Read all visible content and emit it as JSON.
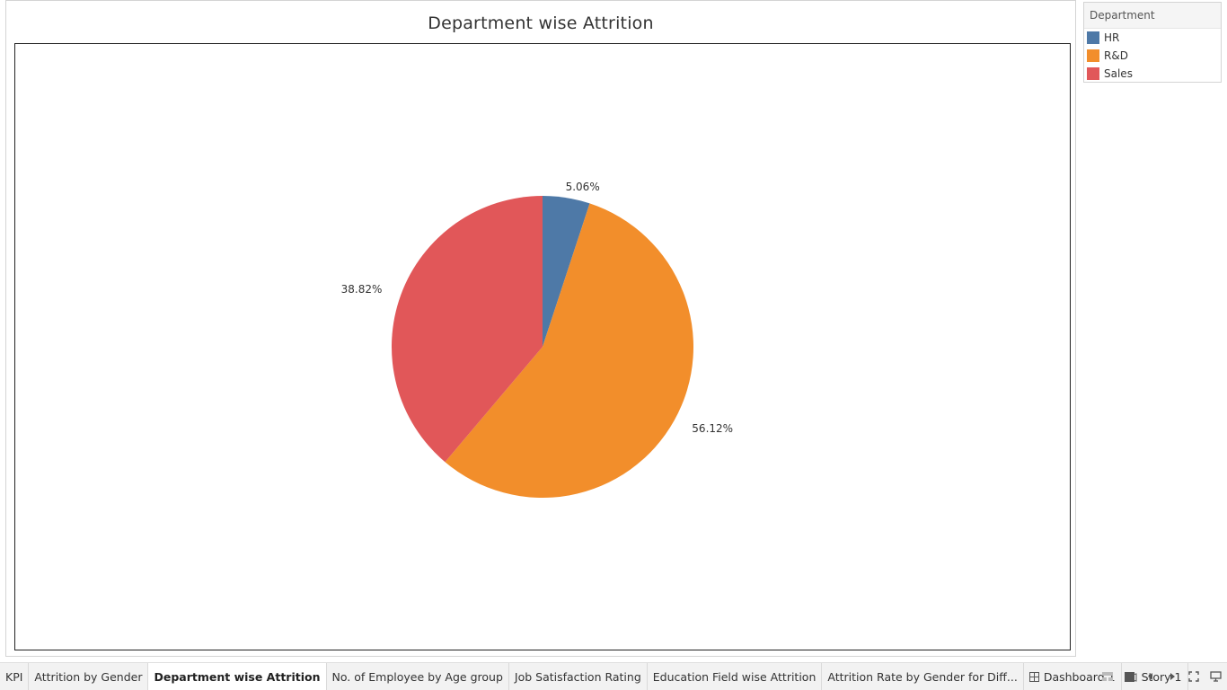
{
  "sheet": {
    "title": "Department wise Attrition"
  },
  "legend": {
    "title": "Department",
    "items": [
      {
        "label": "HR",
        "color": "#4e79a7"
      },
      {
        "label": "R&D",
        "color": "#f28e2b"
      },
      {
        "label": "Sales",
        "color": "#e15759"
      }
    ]
  },
  "chart_data": {
    "type": "pie",
    "title": "Department wise Attrition",
    "categories": [
      "HR",
      "R&D",
      "Sales"
    ],
    "values": [
      5.06,
      56.12,
      38.82
    ],
    "labels": [
      "5.06%",
      "56.12%",
      "38.82%"
    ],
    "colors": [
      "#4e79a7",
      "#f28e2b",
      "#e15759"
    ],
    "start": "12 o'clock, clockwise",
    "legend_position": "right"
  },
  "tabs": [
    {
      "label": "KPI",
      "icon": "",
      "active": false
    },
    {
      "label": "Attrition by Gender",
      "icon": "",
      "active": false
    },
    {
      "label": "Department wise Attrition",
      "icon": "",
      "active": true
    },
    {
      "label": "No. of Employee by Age group",
      "icon": "",
      "active": false
    },
    {
      "label": "Job Satisfaction Rating",
      "icon": "",
      "active": false
    },
    {
      "label": "Education Field wise Attrition",
      "icon": "",
      "active": false
    },
    {
      "label": "Attrition Rate by Gender for Diff...",
      "icon": "",
      "active": false
    },
    {
      "label": "Dashboard 1",
      "icon": "dashboard-icon",
      "active": false
    },
    {
      "label": "Story 1",
      "icon": "story-icon",
      "active": false
    }
  ],
  "controls": [
    {
      "name": "show-filmstrip-icon"
    },
    {
      "name": "show-tabs-icon"
    },
    {
      "name": "previous-sheet-icon"
    },
    {
      "name": "next-sheet-icon"
    },
    {
      "name": "fit-screen-icon"
    },
    {
      "name": "presentation-mode-icon"
    }
  ]
}
